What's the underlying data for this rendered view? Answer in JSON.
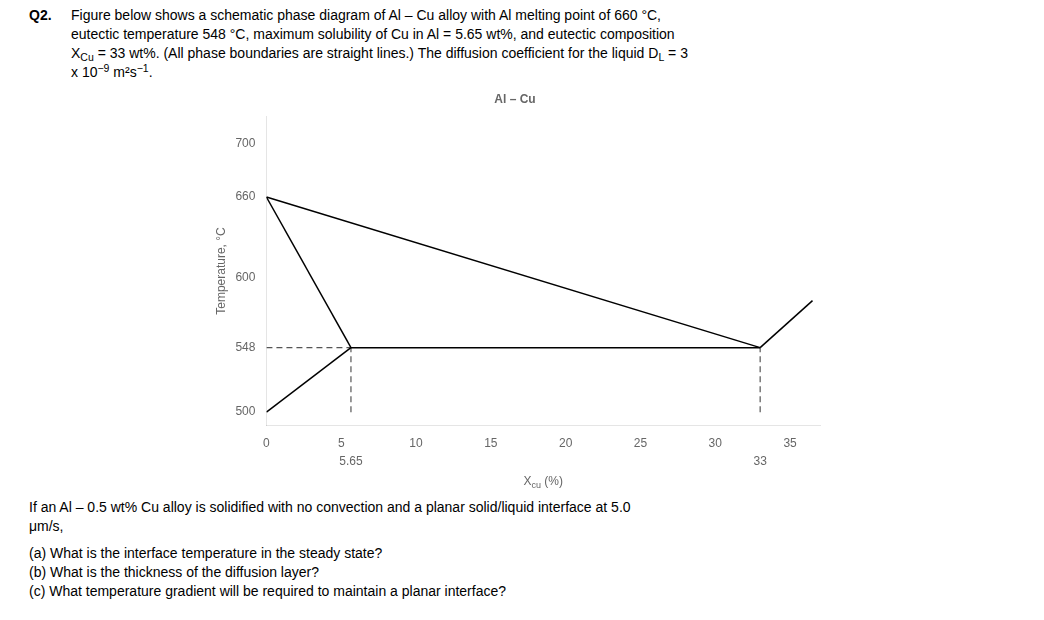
{
  "chart_data": {
    "type": "line",
    "title": "Al – Cu",
    "ylabel": "Temperature, °C",
    "xlabel": [
      {
        "text": "X"
      },
      {
        "text": "cu",
        "style": "sub"
      },
      {
        "text": " (%)"
      }
    ],
    "xlim": [
      0,
      37
    ],
    "ylim": [
      490,
      720
    ],
    "xticks": [
      0,
      5,
      10,
      15,
      20,
      25,
      30,
      35
    ],
    "yticks": [
      500,
      548,
      600,
      660,
      700
    ],
    "grid": false,
    "series": [
      {
        "x": [
          0,
          5.65
        ],
        "values": [
          660,
          548
        ],
        "color": "#000000",
        "line_style": "solid"
      },
      {
        "x": [
          0,
          5.65
        ],
        "values": [
          500,
          548
        ],
        "color": "#000000",
        "line_style": "solid"
      },
      {
        "x": [
          0,
          33
        ],
        "values": [
          660,
          548
        ],
        "color": "#000000",
        "line_style": "solid"
      },
      {
        "x": [
          5.65,
          33
        ],
        "values": [
          548,
          548
        ],
        "color": "#000000",
        "line_style": "solid"
      },
      {
        "x": [
          33,
          36.5
        ],
        "values": [
          548,
          583
        ],
        "color": "#000000",
        "line_style": "solid"
      },
      {
        "x": [
          0,
          5.65
        ],
        "values": [
          548,
          548
        ],
        "color": "#555555",
        "line_style": "dashed"
      },
      {
        "x": [
          5.65,
          5.65
        ],
        "values": [
          500,
          548
        ],
        "color": "#555555",
        "line_style": "dashed"
      },
      {
        "x": [
          33,
          33
        ],
        "values": [
          500,
          548
        ],
        "color": "#555555",
        "line_style": "dashed"
      }
    ],
    "annotations": [
      {
        "x": 5.65,
        "text": "5.65"
      },
      {
        "x": 33,
        "text": "33"
      }
    ],
    "header": [
      [
        {
          "text": "Q2.",
          "style": "bold"
        },
        {
          "text": "Figure below shows a schematic phase diagram of Al – Cu alloy with Al melting point of 660 °C,"
        }
      ],
      [
        {
          "text": "eutectic temperature 548 °C, maximum solubility of Cu in Al = 5.65 wt%, and eutectic composition"
        }
      ],
      [
        {
          "text": "X"
        },
        {
          "text": "Cu",
          "style": "sub"
        },
        {
          "text": " = 33 wt%. (All phase boundaries are straight lines.) The diffusion coefficient for the liquid D"
        },
        {
          "text": "L",
          "style": "sub"
        },
        {
          "text": " = 3"
        }
      ],
      [
        {
          "text": "x 10"
        },
        {
          "text": "−9",
          "style": "sup"
        },
        {
          "text": " m²s"
        },
        {
          "text": "−1",
          "style": "sup"
        },
        {
          "text": "."
        }
      ]
    ],
    "footer": [
      [
        {
          "text": "If an Al – 0.5 wt% Cu alloy is solidified with no convection and a planar solid/liquid interface at 5.0"
        }
      ],
      [
        {
          "text": "μm/s,"
        }
      ]
    ],
    "questions": [
      [
        {
          "text": "(a) What is the interface temperature in the steady state?"
        }
      ],
      [
        {
          "text": "(b) What is the thickness of the diffusion layer?"
        }
      ],
      [
        {
          "text": "(c) What temperature gradient will be required to maintain a planar interface?"
        }
      ]
    ]
  }
}
